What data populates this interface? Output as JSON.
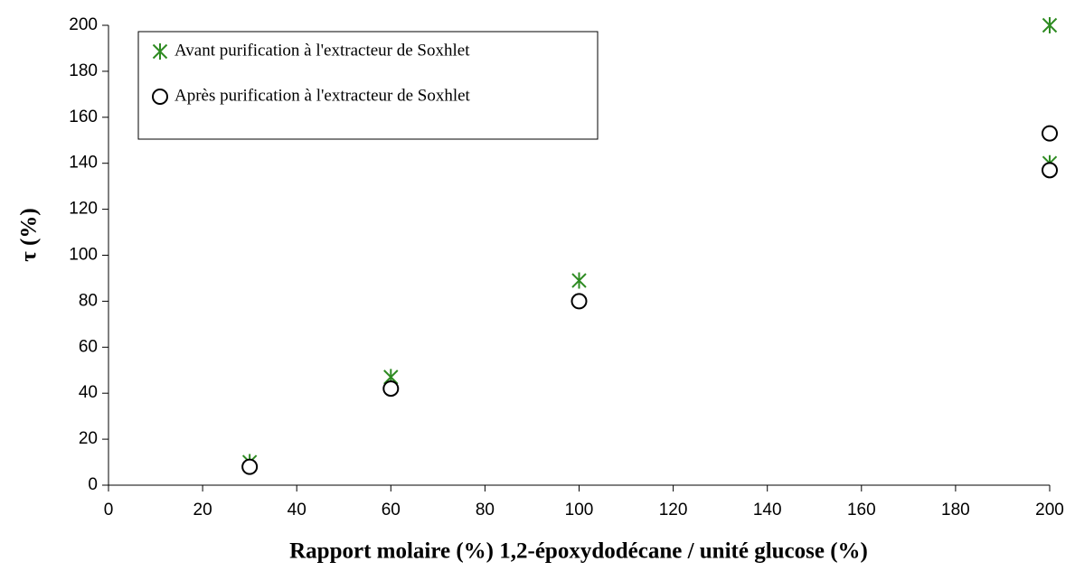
{
  "chart_data": {
    "type": "scatter",
    "xlabel": "Rapport molaire (%) 1,2-époxydodécane / unité glucose (%)",
    "ylabel": "τ (%)",
    "series": [
      {
        "name": "Avant purification à l'extracteur de Soxhlet",
        "color": "#2e8b22",
        "marker": "asterisk",
        "x": [
          30,
          60,
          100,
          200,
          200
        ],
        "values": [
          10,
          47,
          89,
          200,
          140
        ]
      },
      {
        "name": "Après purification à l'extracteur de Soxhlet",
        "color": "#000000",
        "marker": "circle",
        "x": [
          30,
          60,
          100,
          200,
          200
        ],
        "values": [
          8,
          42,
          80,
          153,
          137
        ]
      }
    ],
    "xlim": [
      0,
      200
    ],
    "xticks": [
      0,
      20,
      40,
      60,
      80,
      100,
      120,
      140,
      160,
      180,
      200
    ],
    "ylim": [
      0,
      200
    ],
    "yticks": [
      0,
      20,
      40,
      60,
      80,
      100,
      120,
      140,
      160,
      180,
      200
    ],
    "grid": false,
    "legend": "upper left"
  }
}
